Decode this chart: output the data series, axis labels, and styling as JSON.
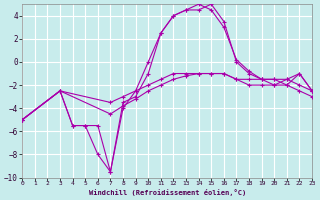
{
  "xlabel": "Windchill (Refroidissement éolien,°C)",
  "background_color": "#c8ecec",
  "grid_color": "#ffffff",
  "line_color": "#aa00aa",
  "xlim": [
    0,
    23
  ],
  "ylim": [
    -10,
    5
  ],
  "yticks": [
    -10,
    -8,
    -6,
    -4,
    -2,
    0,
    2,
    4
  ],
  "xticks": [
    0,
    1,
    2,
    3,
    4,
    5,
    6,
    7,
    8,
    9,
    10,
    11,
    12,
    13,
    14,
    15,
    16,
    17,
    18,
    19,
    20,
    21,
    22,
    23
  ],
  "line_A_x": [
    0,
    3,
    7,
    8,
    9,
    10,
    11,
    12,
    13,
    14,
    15,
    16,
    17,
    18,
    19,
    20,
    21,
    22,
    23
  ],
  "line_A_y": [
    -5.0,
    -2.5,
    -3.5,
    -3.0,
    -2.5,
    -2.0,
    -1.5,
    -1.0,
    -1.0,
    -1.0,
    -1.0,
    -1.0,
    -1.5,
    -1.5,
    -1.5,
    -1.5,
    -1.5,
    -2.0,
    -2.5
  ],
  "line_B_x": [
    0,
    3,
    7,
    8,
    9,
    10,
    11,
    12,
    13,
    14,
    15,
    16,
    17,
    18,
    19,
    20,
    21,
    22,
    23
  ],
  "line_B_y": [
    -5.0,
    -2.5,
    -4.5,
    -3.8,
    -3.2,
    -2.5,
    -2.0,
    -1.5,
    -1.2,
    -1.0,
    -1.0,
    -1.0,
    -1.5,
    -2.0,
    -2.0,
    -2.0,
    -2.0,
    -2.5,
    -3.0
  ],
  "line_C_x": [
    0,
    3,
    4,
    5,
    6,
    7,
    8,
    9,
    10,
    11,
    12,
    13,
    14,
    15,
    16,
    17,
    18,
    19,
    20,
    21,
    22,
    23
  ],
  "line_C_y": [
    -5.0,
    -2.5,
    -5.5,
    -5.5,
    -5.5,
    -9.5,
    -3.5,
    -3.0,
    -1.0,
    2.5,
    4.0,
    4.5,
    4.5,
    5.0,
    3.5,
    0.0,
    -1.0,
    -1.5,
    -2.0,
    -1.5,
    -1.0,
    -2.5
  ],
  "line_D_x": [
    0,
    3,
    4,
    5,
    6,
    7,
    8,
    9,
    10,
    11,
    12,
    13,
    14,
    15,
    16,
    17,
    18,
    19,
    20,
    21,
    22,
    23
  ],
  "line_D_y": [
    -5.0,
    -2.5,
    -5.5,
    -5.5,
    -8.0,
    -9.5,
    -4.0,
    -2.5,
    0.0,
    2.5,
    4.0,
    4.5,
    5.0,
    4.5,
    3.0,
    0.2,
    -0.8,
    -1.5,
    -1.5,
    -2.0,
    -1.0,
    -2.5
  ]
}
